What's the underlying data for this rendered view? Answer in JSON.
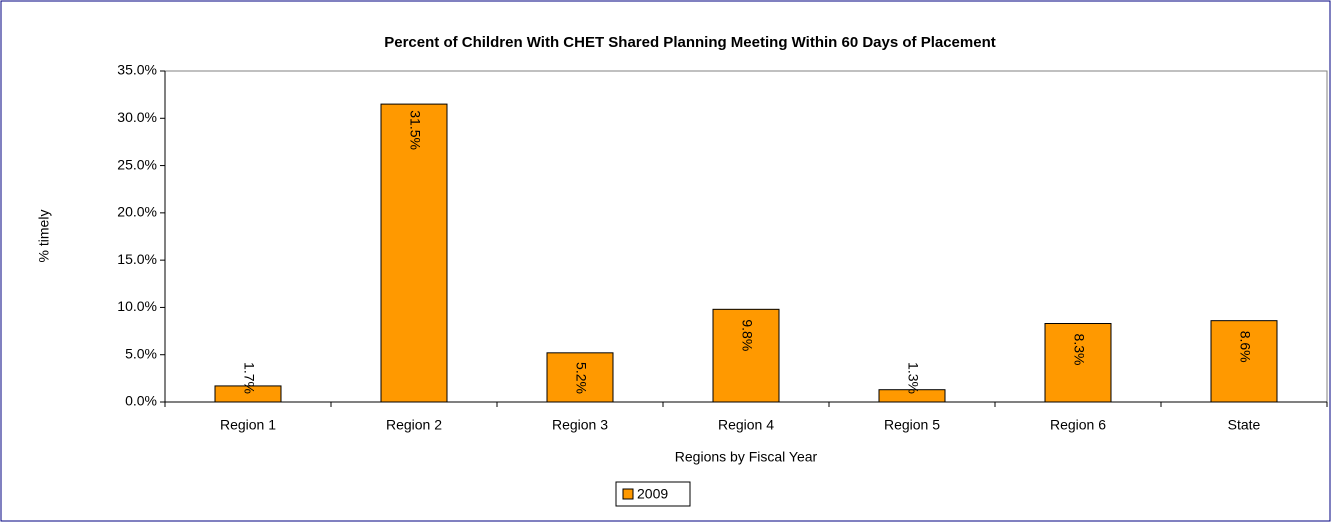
{
  "chart_data": {
    "type": "bar",
    "title": "Percent of Children With CHET Shared Planning Meeting Within 60 Days of Placement",
    "x_label": "Regions by Fiscal Year",
    "y_label": "% timely",
    "categories": [
      "Region 1",
      "Region 2",
      "Region 3",
      "Region 4",
      "Region 5",
      "Region 6",
      "State"
    ],
    "series": [
      {
        "name": "2009",
        "color": "#ff9900",
        "values": [
          1.7,
          31.5,
          5.2,
          9.8,
          1.3,
          8.3,
          8.6
        ],
        "value_labels": [
          "1.7%",
          "31.5%",
          "5.2%",
          "9.8%",
          "1.3%",
          "8.3%",
          "8.6%"
        ]
      }
    ],
    "ylim": [
      0,
      35
    ],
    "yticks": [
      {
        "value": 0,
        "label": "0.0%"
      },
      {
        "value": 5,
        "label": "5.0%"
      },
      {
        "value": 10,
        "label": "10.0%"
      },
      {
        "value": 15,
        "label": "15.0%"
      },
      {
        "value": 20,
        "label": "20.0%"
      },
      {
        "value": 25,
        "label": "25.0%"
      },
      {
        "value": 30,
        "label": "30.0%"
      },
      {
        "value": 35,
        "label": "35.0%"
      }
    ],
    "grid": false,
    "legend": "bottom"
  }
}
